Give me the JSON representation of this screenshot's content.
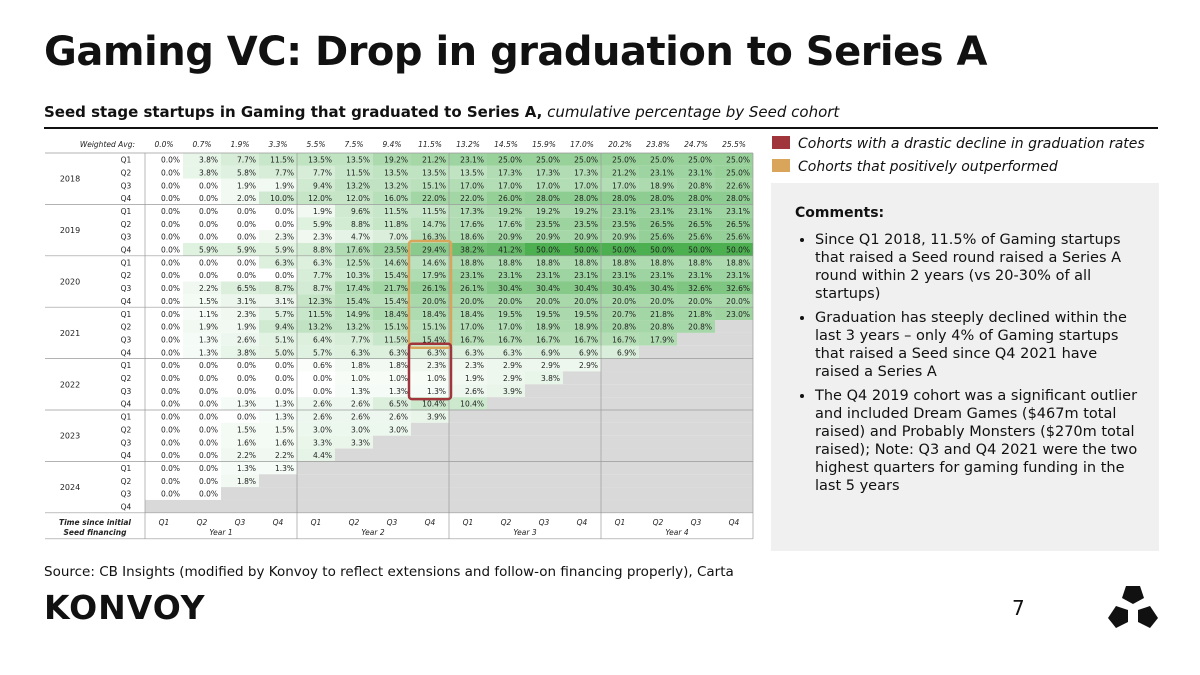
{
  "title": "Gaming VC: Drop in graduation to Series A",
  "subtitle_bold": "Seed stage startups in Gaming that graduated to Series A,",
  "subtitle_italic": "cumulative percentage by Seed cohort",
  "legend": [
    {
      "label": "Cohorts with a drastic decline in graduation rates",
      "color": "#a0363c"
    },
    {
      "label": "Cohorts that positively outperformed",
      "color": "#d9a55a"
    }
  ],
  "comments": {
    "heading": "Comments:",
    "bullets": [
      "Since Q1 2018, 11.5% of Gaming startups that raised a Seed round raised a Series A round within 2 years (vs 20-30% of all startups)",
      "Graduation has steeply declined within the last 3 years – only 4% of Gaming startups that raised a Seed since Q4 2021 have raised a Series A",
      "The Q4 2019 cohort was a significant outlier and included Dream Games ($467m total raised) and Probably Monsters ($270m total raised); Note: Q3 and Q4 2021 were the two highest quarters for gaming funding in the last 5 years"
    ]
  },
  "source": "Source: CB Insights (modified by Konvoy to reflect extensions and follow-on financing properly), Carta",
  "logo": "KONVOY",
  "page_number": "7",
  "colors": {
    "heat_low": "#ffffff",
    "heat_high": "#4caf50",
    "empty_cell": "#d9d9d9",
    "decline_box": "#a0363c",
    "outperform_box": "#d9a55a"
  },
  "chart_data": {
    "type": "heatmap",
    "weighted_avg_label": "Weighted Avg:",
    "weighted_avg": [
      "0.0%",
      "0.7%",
      "1.9%",
      "3.3%",
      "5.5%",
      "7.5%",
      "9.4%",
      "11.5%",
      "13.2%",
      "14.5%",
      "15.9%",
      "17.0%",
      "20.2%",
      "23.8%",
      "24.7%",
      "25.5%"
    ],
    "x_axis_title": [
      "Time since initial",
      "Seed financing"
    ],
    "x_quarters": [
      "Q1",
      "Q2",
      "Q3",
      "Q4",
      "Q1",
      "Q2",
      "Q3",
      "Q4",
      "Q1",
      "Q2",
      "Q3",
      "Q4",
      "Q1",
      "Q2",
      "Q3",
      "Q4"
    ],
    "x_years": [
      "Year 1",
      "Year 2",
      "Year 3",
      "Year 4"
    ],
    "cohort_years": [
      "2018",
      "2019",
      "2020",
      "2021",
      "2022",
      "2023",
      "2024"
    ],
    "cohort_quarters": [
      "Q1",
      "Q2",
      "Q3",
      "Q4"
    ],
    "rows": [
      [
        "0.0%",
        "3.8%",
        "7.7%",
        "11.5%",
        "13.5%",
        "13.5%",
        "19.2%",
        "21.2%",
        "23.1%",
        "25.0%",
        "25.0%",
        "25.0%",
        "25.0%",
        "25.0%",
        "25.0%",
        "25.0%"
      ],
      [
        "0.0%",
        "3.8%",
        "5.8%",
        "7.7%",
        "7.7%",
        "11.5%",
        "13.5%",
        "13.5%",
        "13.5%",
        "17.3%",
        "17.3%",
        "17.3%",
        "21.2%",
        "23.1%",
        "23.1%",
        "25.0%"
      ],
      [
        "0.0%",
        "0.0%",
        "1.9%",
        "1.9%",
        "9.4%",
        "13.2%",
        "13.2%",
        "15.1%",
        "17.0%",
        "17.0%",
        "17.0%",
        "17.0%",
        "17.0%",
        "18.9%",
        "20.8%",
        "22.6%"
      ],
      [
        "0.0%",
        "0.0%",
        "2.0%",
        "10.0%",
        "12.0%",
        "12.0%",
        "16.0%",
        "22.0%",
        "22.0%",
        "26.0%",
        "28.0%",
        "28.0%",
        "28.0%",
        "28.0%",
        "28.0%",
        "28.0%"
      ],
      [
        "0.0%",
        "0.0%",
        "0.0%",
        "0.0%",
        "1.9%",
        "9.6%",
        "11.5%",
        "11.5%",
        "17.3%",
        "19.2%",
        "19.2%",
        "19.2%",
        "23.1%",
        "23.1%",
        "23.1%",
        "23.1%"
      ],
      [
        "0.0%",
        "0.0%",
        "0.0%",
        "0.0%",
        "5.9%",
        "8.8%",
        "11.8%",
        "14.7%",
        "17.6%",
        "17.6%",
        "23.5%",
        "23.5%",
        "23.5%",
        "26.5%",
        "26.5%",
        "26.5%"
      ],
      [
        "0.0%",
        "0.0%",
        "0.0%",
        "2.3%",
        "2.3%",
        "4.7%",
        "7.0%",
        "16.3%",
        "18.6%",
        "20.9%",
        "20.9%",
        "20.9%",
        "20.9%",
        "25.6%",
        "25.6%",
        "25.6%"
      ],
      [
        "0.0%",
        "5.9%",
        "5.9%",
        "5.9%",
        "8.8%",
        "17.6%",
        "23.5%",
        "29.4%",
        "38.2%",
        "41.2%",
        "50.0%",
        "50.0%",
        "50.0%",
        "50.0%",
        "50.0%",
        "50.0%"
      ],
      [
        "0.0%",
        "0.0%",
        "0.0%",
        "6.3%",
        "6.3%",
        "12.5%",
        "14.6%",
        "14.6%",
        "18.8%",
        "18.8%",
        "18.8%",
        "18.8%",
        "18.8%",
        "18.8%",
        "18.8%",
        "18.8%"
      ],
      [
        "0.0%",
        "0.0%",
        "0.0%",
        "0.0%",
        "7.7%",
        "10.3%",
        "15.4%",
        "17.9%",
        "23.1%",
        "23.1%",
        "23.1%",
        "23.1%",
        "23.1%",
        "23.1%",
        "23.1%",
        "23.1%"
      ],
      [
        "0.0%",
        "2.2%",
        "6.5%",
        "8.7%",
        "8.7%",
        "17.4%",
        "21.7%",
        "26.1%",
        "26.1%",
        "30.4%",
        "30.4%",
        "30.4%",
        "30.4%",
        "30.4%",
        "32.6%",
        "32.6%"
      ],
      [
        "0.0%",
        "1.5%",
        "3.1%",
        "3.1%",
        "12.3%",
        "15.4%",
        "15.4%",
        "20.0%",
        "20.0%",
        "20.0%",
        "20.0%",
        "20.0%",
        "20.0%",
        "20.0%",
        "20.0%",
        "20.0%"
      ],
      [
        "0.0%",
        "1.1%",
        "2.3%",
        "5.7%",
        "11.5%",
        "14.9%",
        "18.4%",
        "18.4%",
        "18.4%",
        "19.5%",
        "19.5%",
        "19.5%",
        "20.7%",
        "21.8%",
        "21.8%",
        "23.0%"
      ],
      [
        "0.0%",
        "1.9%",
        "1.9%",
        "9.4%",
        "13.2%",
        "13.2%",
        "15.1%",
        "15.1%",
        "17.0%",
        "17.0%",
        "18.9%",
        "18.9%",
        "20.8%",
        "20.8%",
        "20.8%",
        null
      ],
      [
        "0.0%",
        "1.3%",
        "2.6%",
        "5.1%",
        "6.4%",
        "7.7%",
        "11.5%",
        "15.4%",
        "16.7%",
        "16.7%",
        "16.7%",
        "16.7%",
        "16.7%",
        "17.9%",
        null,
        null
      ],
      [
        "0.0%",
        "1.3%",
        "3.8%",
        "5.0%",
        "5.7%",
        "6.3%",
        "6.3%",
        "6.3%",
        "6.3%",
        "6.3%",
        "6.9%",
        "6.9%",
        "6.9%",
        null,
        null,
        null
      ],
      [
        "0.0%",
        "0.0%",
        "0.0%",
        "0.0%",
        "0.6%",
        "1.8%",
        "1.8%",
        "2.3%",
        "2.3%",
        "2.9%",
        "2.9%",
        "2.9%",
        null,
        null,
        null,
        null
      ],
      [
        "0.0%",
        "0.0%",
        "0.0%",
        "0.0%",
        "0.0%",
        "1.0%",
        "1.0%",
        "1.0%",
        "1.9%",
        "2.9%",
        "3.8%",
        null,
        null,
        null,
        null,
        null
      ],
      [
        "0.0%",
        "0.0%",
        "0.0%",
        "0.0%",
        "0.0%",
        "1.3%",
        "1.3%",
        "1.3%",
        "2.6%",
        "3.9%",
        null,
        null,
        null,
        null,
        null,
        null
      ],
      [
        "0.0%",
        "0.0%",
        "1.3%",
        "1.3%",
        "2.6%",
        "2.6%",
        "6.5%",
        "10.4%",
        "10.4%",
        null,
        null,
        null,
        null,
        null,
        null,
        null
      ],
      [
        "0.0%",
        "0.0%",
        "0.0%",
        "1.3%",
        "2.6%",
        "2.6%",
        "2.6%",
        "3.9%",
        null,
        null,
        null,
        null,
        null,
        null,
        null,
        null
      ],
      [
        "0.0%",
        "0.0%",
        "1.5%",
        "1.5%",
        "3.0%",
        "3.0%",
        "3.0%",
        null,
        null,
        null,
        null,
        null,
        null,
        null,
        null,
        null
      ],
      [
        "0.0%",
        "0.0%",
        "1.6%",
        "1.6%",
        "3.3%",
        "3.3%",
        null,
        null,
        null,
        null,
        null,
        null,
        null,
        null,
        null,
        null
      ],
      [
        "0.0%",
        "0.0%",
        "2.2%",
        "2.2%",
        "4.4%",
        null,
        null,
        null,
        null,
        null,
        null,
        null,
        null,
        null,
        null,
        null
      ],
      [
        "0.0%",
        "0.0%",
        "1.3%",
        "1.3%",
        null,
        null,
        null,
        null,
        null,
        null,
        null,
        null,
        null,
        null,
        null,
        null
      ],
      [
        "0.0%",
        "0.0%",
        "1.8%",
        null,
        null,
        null,
        null,
        null,
        null,
        null,
        null,
        null,
        null,
        null,
        null,
        null
      ],
      [
        "0.0%",
        "0.0%",
        null,
        null,
        null,
        null,
        null,
        null,
        null,
        null,
        null,
        null,
        null,
        null,
        null,
        null
      ],
      [
        null,
        null,
        null,
        null,
        null,
        null,
        null,
        null,
        null,
        null,
        null,
        null,
        null,
        null,
        null,
        null
      ]
    ],
    "highlights": [
      {
        "type": "outperform",
        "col": 7,
        "row_start": 7,
        "row_end": 15
      },
      {
        "type": "decline",
        "col": 7,
        "row_start": 15,
        "row_end": 19
      }
    ]
  }
}
